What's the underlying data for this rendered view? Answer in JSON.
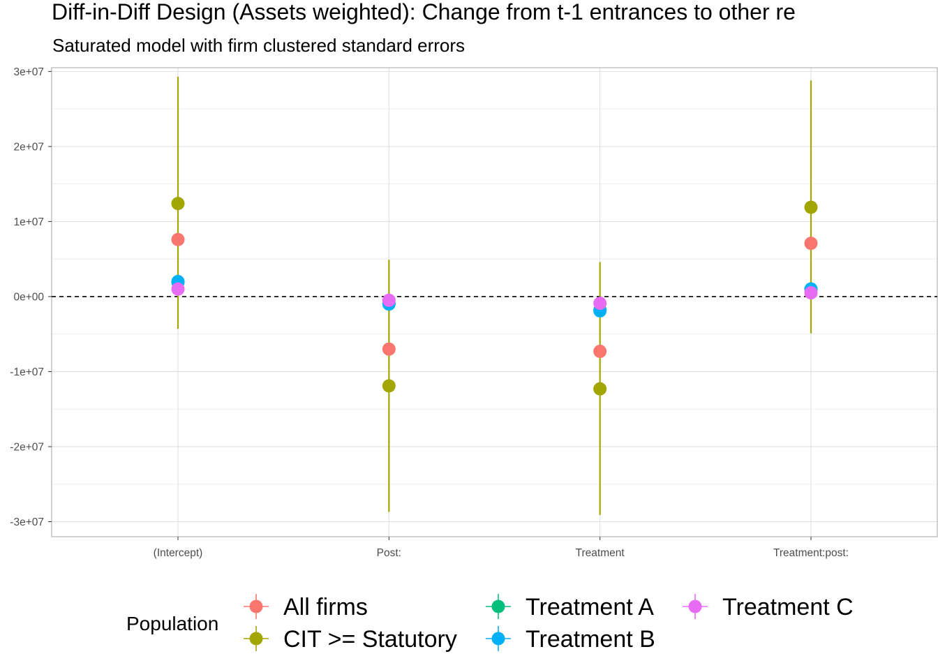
{
  "chart_data": {
    "type": "scatter",
    "title": "Diff-in-Diff Design (Assets weighted): Change from t-1 entrances to other re",
    "subtitle": "Saturated model with firm clustered standard errors",
    "xlabel": "",
    "ylabel": "",
    "categories": [
      "(Intercept)",
      "Post:",
      "Treatment",
      "Treatment:post:"
    ],
    "ylim": [
      -32000000,
      30500000
    ],
    "y_ticks": [
      30000000,
      20000000,
      10000000,
      0,
      -10000000,
      -20000000,
      -30000000
    ],
    "y_tick_labels": [
      "3e+07",
      "2e+07",
      "1e+07",
      "0e+00",
      "-1e+07",
      "-2e+07",
      "-3e+07"
    ],
    "reference_line": 0,
    "grid": true,
    "legend": {
      "title": "Population",
      "position": "bottom"
    },
    "series": [
      {
        "name": "All firms",
        "color": "#F8766D",
        "values": [
          7600000,
          -7000000,
          -7300000,
          7100000
        ],
        "lower": [
          7600000,
          -7000000,
          -7300000,
          7100000
        ],
        "upper": [
          7600000,
          -7000000,
          -7300000,
          7100000
        ]
      },
      {
        "name": "CIT >= Statutory",
        "color": "#A3A500",
        "values": [
          12400000,
          -11900000,
          -12300000,
          11900000
        ],
        "lower": [
          -4300000,
          -28700000,
          -29100000,
          -4900000
        ],
        "upper": [
          29300000,
          4900000,
          4600000,
          28800000
        ]
      },
      {
        "name": "Treatment A",
        "color": "#00BF7D",
        "values": [
          1900000,
          -900000,
          -1800000,
          1000000
        ],
        "lower": [
          1900000,
          -900000,
          -1800000,
          1000000
        ],
        "upper": [
          1900000,
          -900000,
          -1800000,
          1000000
        ]
      },
      {
        "name": "Treatment B",
        "color": "#00B0F6",
        "values": [
          2000000,
          -1000000,
          -1900000,
          1000000
        ],
        "lower": [
          2000000,
          -1000000,
          -1900000,
          1000000
        ],
        "upper": [
          2000000,
          -1000000,
          -1900000,
          1000000
        ]
      },
      {
        "name": "Treatment C",
        "color": "#E76BF3",
        "values": [
          1000000,
          -500000,
          -900000,
          500000
        ],
        "lower": [
          1000000,
          -500000,
          -900000,
          500000
        ],
        "upper": [
          1000000,
          -500000,
          -900000,
          500000
        ]
      }
    ]
  }
}
